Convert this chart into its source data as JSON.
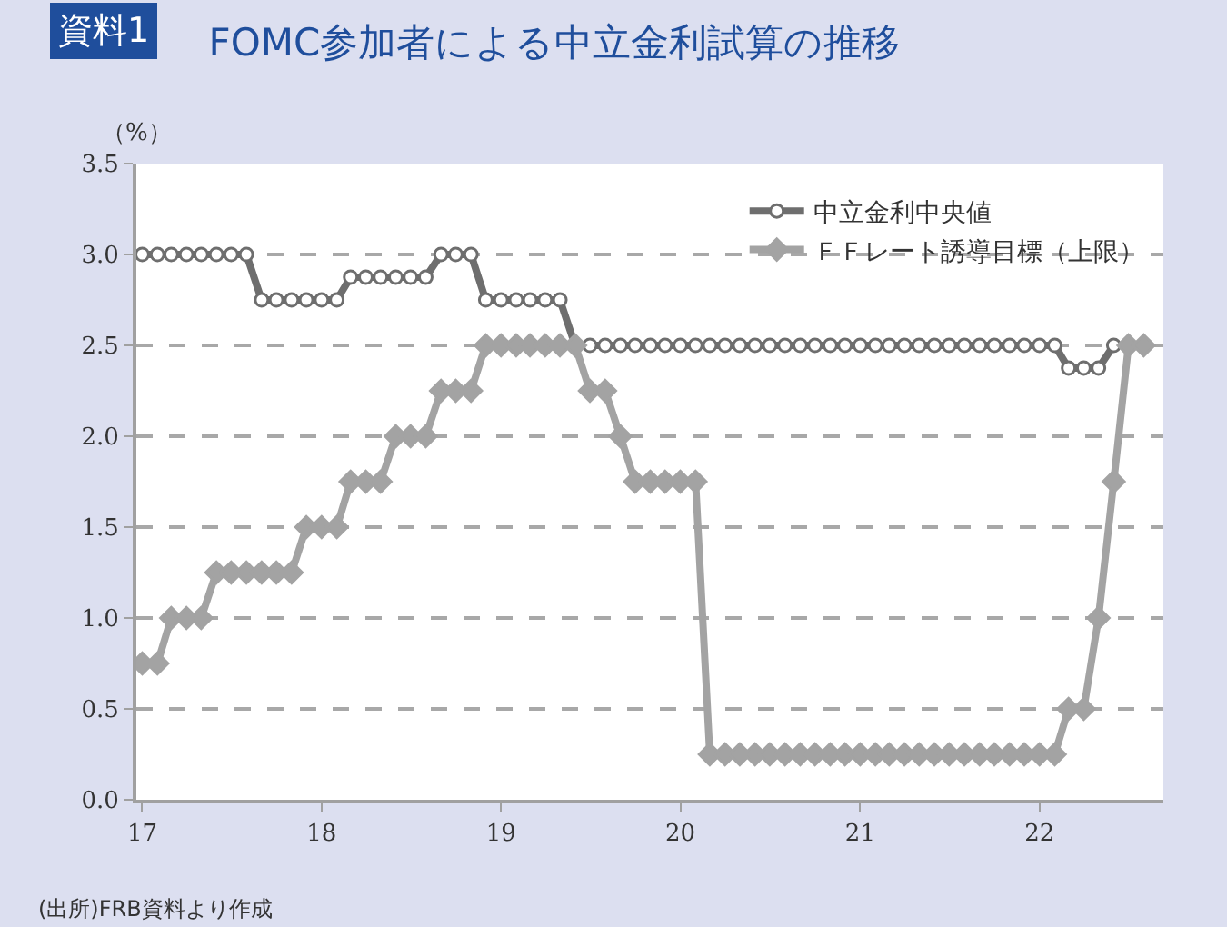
{
  "chart_data": {
    "type": "line",
    "title": "FOMC参加者による中立金利試算の推移",
    "ylabel": "（%）",
    "annotations": [
      "資料1",
      "(出所)FRB資料より作成"
    ],
    "x": [
      "2017-01",
      "2017-02",
      "2017-03",
      "2017-04",
      "2017-05",
      "2017-06",
      "2017-07",
      "2017-08",
      "2017-09",
      "2017-10",
      "2017-11",
      "2017-12",
      "2018-01",
      "2018-02",
      "2018-03",
      "2018-04",
      "2018-05",
      "2018-06",
      "2018-07",
      "2018-08",
      "2018-09",
      "2018-10",
      "2018-11",
      "2018-12",
      "2019-01",
      "2019-02",
      "2019-03",
      "2019-04",
      "2019-05",
      "2019-06",
      "2019-07",
      "2019-08",
      "2019-09",
      "2019-10",
      "2019-11",
      "2019-12",
      "2020-01",
      "2020-02",
      "2020-03",
      "2020-04",
      "2020-05",
      "2020-06",
      "2020-07",
      "2020-08",
      "2020-09",
      "2020-10",
      "2020-11",
      "2020-12",
      "2021-01",
      "2021-02",
      "2021-03",
      "2021-04",
      "2021-05",
      "2021-06",
      "2021-07",
      "2021-08",
      "2021-09",
      "2021-10",
      "2021-11",
      "2021-12",
      "2022-01",
      "2022-02",
      "2022-03",
      "2022-04",
      "2022-05",
      "2022-06",
      "2022-07",
      "2022-08"
    ],
    "series": [
      {
        "name": "中立金利中央値",
        "color": "#6e6e6e",
        "marker": "circle",
        "values": [
          3.0,
          3.0,
          3.0,
          3.0,
          3.0,
          3.0,
          3.0,
          3.0,
          2.75,
          2.75,
          2.75,
          2.75,
          2.75,
          2.75,
          2.875,
          2.875,
          2.875,
          2.875,
          2.875,
          2.875,
          3.0,
          3.0,
          3.0,
          2.75,
          2.75,
          2.75,
          2.75,
          2.75,
          2.75,
          2.5,
          2.5,
          2.5,
          2.5,
          2.5,
          2.5,
          2.5,
          2.5,
          2.5,
          2.5,
          2.5,
          2.5,
          2.5,
          2.5,
          2.5,
          2.5,
          2.5,
          2.5,
          2.5,
          2.5,
          2.5,
          2.5,
          2.5,
          2.5,
          2.5,
          2.5,
          2.5,
          2.5,
          2.5,
          2.5,
          2.5,
          2.5,
          2.5,
          2.375,
          2.375,
          2.375,
          2.5,
          2.5,
          2.5
        ]
      },
      {
        "name": "ＦＦレート誘導目標（上限）",
        "color": "#a3a3a3",
        "marker": "diamond",
        "values": [
          0.75,
          0.75,
          1.0,
          1.0,
          1.0,
          1.25,
          1.25,
          1.25,
          1.25,
          1.25,
          1.25,
          1.5,
          1.5,
          1.5,
          1.75,
          1.75,
          1.75,
          2.0,
          2.0,
          2.0,
          2.25,
          2.25,
          2.25,
          2.5,
          2.5,
          2.5,
          2.5,
          2.5,
          2.5,
          2.5,
          2.25,
          2.25,
          2.0,
          1.75,
          1.75,
          1.75,
          1.75,
          1.75,
          0.25,
          0.25,
          0.25,
          0.25,
          0.25,
          0.25,
          0.25,
          0.25,
          0.25,
          0.25,
          0.25,
          0.25,
          0.25,
          0.25,
          0.25,
          0.25,
          0.25,
          0.25,
          0.25,
          0.25,
          0.25,
          0.25,
          0.25,
          0.25,
          0.5,
          0.5,
          1.0,
          1.75,
          2.5,
          2.5
        ]
      }
    ],
    "xlim": [
      "2016-12-20",
      "2022-09-10"
    ],
    "xticks": [
      {
        "value": "2017-01-01",
        "label": "17"
      },
      {
        "value": "2018-01-01",
        "label": "18"
      },
      {
        "value": "2019-01-01",
        "label": "19"
      },
      {
        "value": "2020-01-01",
        "label": "20"
      },
      {
        "value": "2021-01-01",
        "label": "21"
      },
      {
        "value": "2022-01-01",
        "label": "22"
      }
    ],
    "ylim": [
      0,
      3.5
    ],
    "yticks": [
      {
        "value": 0,
        "label": "0.0"
      },
      {
        "value": 0.5,
        "label": "0.5"
      },
      {
        "value": 1,
        "label": "1.0"
      },
      {
        "value": 1.5,
        "label": "1.5"
      },
      {
        "value": 2,
        "label": "2.0"
      },
      {
        "value": 2.5,
        "label": "2.5"
      },
      {
        "value": 3,
        "label": "3.0"
      },
      {
        "value": 3.5,
        "label": "3.5"
      }
    ],
    "grid": "y",
    "legend": "top right",
    "line_style": "solid"
  }
}
